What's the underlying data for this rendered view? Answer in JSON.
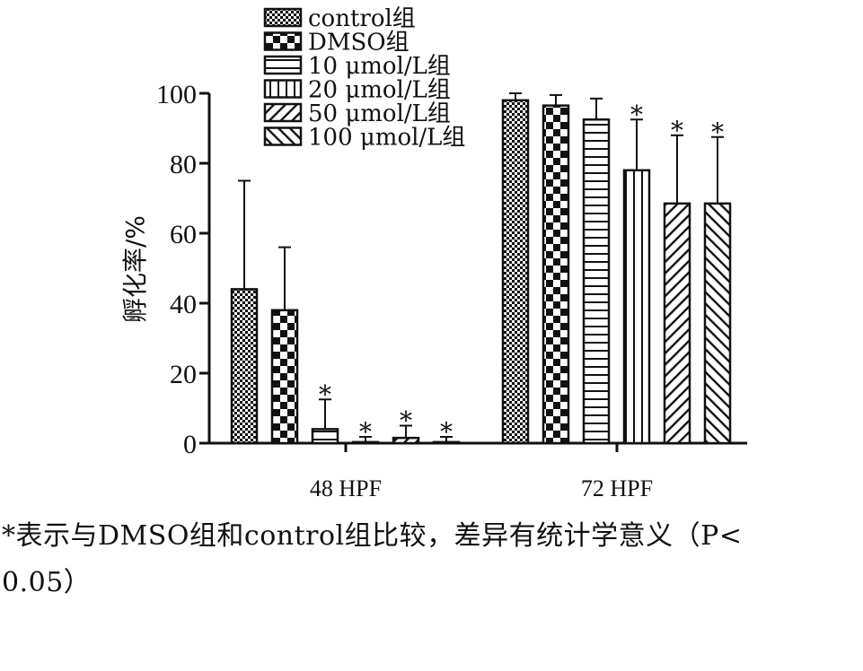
{
  "chart_data": {
    "type": "bar",
    "categories": [
      "48 HPF",
      "72 HPF"
    ],
    "series": [
      {
        "name": "control组",
        "values": [
          44,
          98
        ],
        "errors": [
          31,
          2
        ],
        "significant": [
          false,
          false
        ],
        "pattern": "grid"
      },
      {
        "name": "DMSO组",
        "values": [
          38,
          96.5
        ],
        "errors": [
          18,
          3
        ],
        "significant": [
          false,
          false
        ],
        "pattern": "checker"
      },
      {
        "name": "10 μmol/L组",
        "values": [
          4,
          92.5
        ],
        "errors": [
          8.5,
          6
        ],
        "significant": [
          true,
          false
        ],
        "pattern": "hlines"
      },
      {
        "name": "20 μmol/L组",
        "values": [
          0.3,
          78
        ],
        "errors": [
          1.5,
          14.5
        ],
        "significant": [
          true,
          true
        ],
        "pattern": "vlines"
      },
      {
        "name": "50 μmol/L组",
        "values": [
          1.5,
          68.5
        ],
        "errors": [
          3.5,
          19.5
        ],
        "significant": [
          true,
          true
        ],
        "pattern": "diag-right"
      },
      {
        "name": "100 μmol/L组",
        "values": [
          0.3,
          68.5
        ],
        "errors": [
          1.5,
          19
        ],
        "significant": [
          true,
          true
        ],
        "pattern": "diag-left"
      }
    ],
    "significance_marker": "*",
    "ylabel": "孵化率/%",
    "xlabel": "",
    "ylim": [
      0,
      100
    ],
    "yticks": [
      "0",
      "20",
      "40",
      "60",
      "80",
      "100"
    ],
    "legend_position": "top",
    "grid": false
  },
  "footnote": {
    "line1": "*表示与DMSO组和control组比较，差异有统计学意义（P<",
    "line2": "0.05）"
  }
}
